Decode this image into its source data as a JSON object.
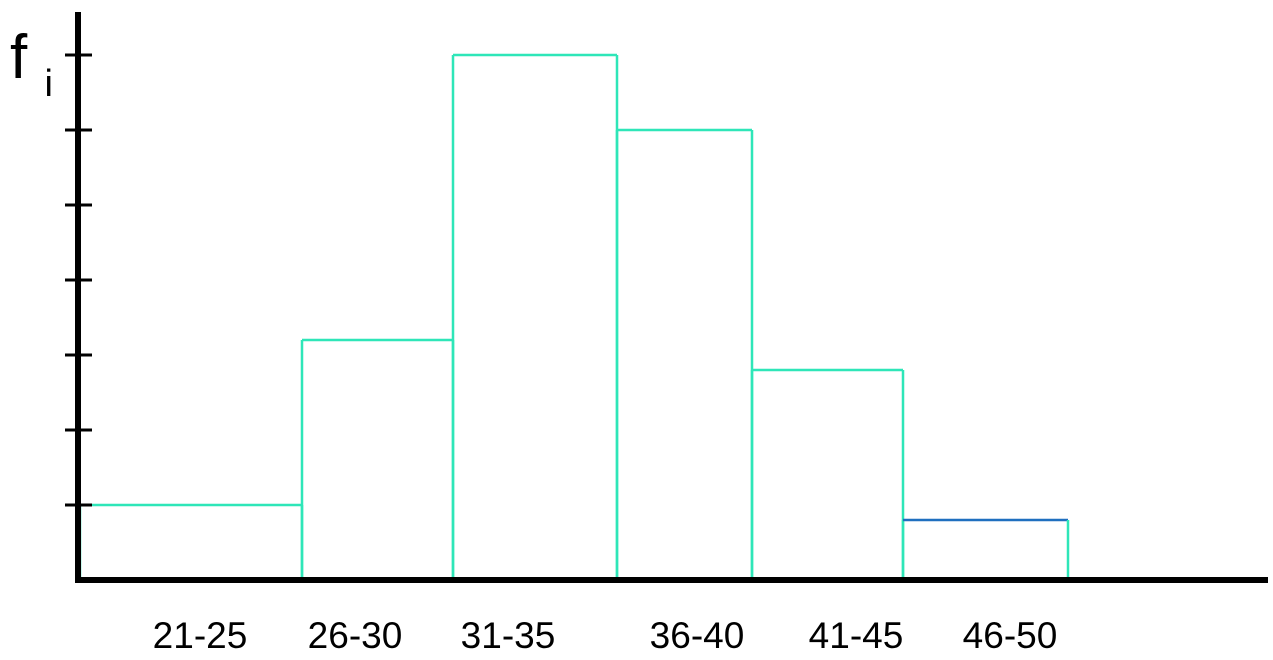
{
  "chart_data": {
    "type": "bar",
    "title": "",
    "xlabel": "",
    "ylabel": "f",
    "ylabel_subscript": "i",
    "categories": [
      "21-25",
      "26-30",
      "31-35",
      "36-40",
      "41-45",
      "46-50"
    ],
    "values": [
      1,
      3.2,
      7,
      6,
      2.8,
      0.8
    ],
    "ylim": [
      0,
      7
    ],
    "y_tick_count": 7,
    "y_tick_labels_shown": false,
    "grid": false,
    "legend": "none",
    "bar_fill": "none",
    "bar_stroke": "#2EE6B8",
    "last_bar_top_stroke": "#1F6FBF",
    "axis_color": "#000000"
  }
}
